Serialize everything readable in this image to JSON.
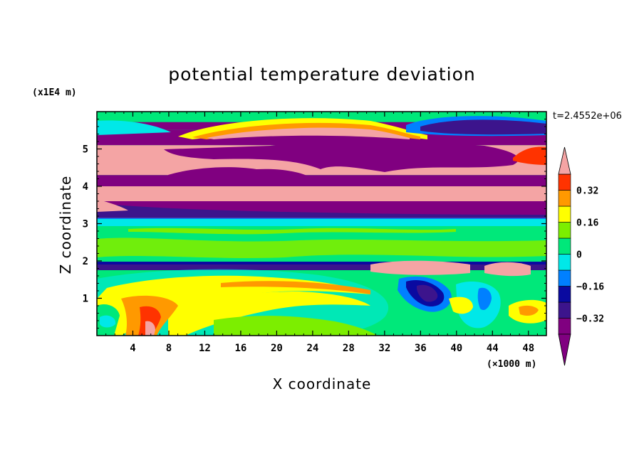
{
  "chart_data": {
    "type": "heatmap",
    "title": "potential temperature deviation",
    "xlabel": "X coordinate",
    "ylabel": "Z coordinate",
    "x_unit": "(×1000 m)",
    "y_unit": "(x1E4 m)",
    "time_label": "t=2.4552e+06",
    "xlim": [
      0,
      50
    ],
    "ylim": [
      0,
      6
    ],
    "x_ticks": [
      4,
      8,
      12,
      16,
      20,
      24,
      28,
      32,
      36,
      40,
      44,
      48
    ],
    "y_ticks": [
      1,
      2,
      3,
      4,
      5
    ],
    "colorbar": {
      "levels": [
        -0.4,
        -0.32,
        -0.24,
        -0.16,
        -0.08,
        0,
        0.08,
        0.16,
        0.24,
        0.32,
        0.4
      ],
      "labels": [
        "0.32",
        "0.16",
        "0",
        "−0.16",
        "−0.32"
      ],
      "label_values": [
        0.32,
        0.16,
        0,
        -0.16,
        -0.32
      ],
      "colors_low_to_high": [
        "#800080",
        "#3c148c",
        "#0a0aa0",
        "#0080ff",
        "#00e8e8",
        "#00e87a",
        "#7cee00",
        "#ffff00",
        "#ff9900",
        "#ff3300",
        "#f4a4a4"
      ],
      "extend": "both"
    },
    "bands": [
      {
        "z": [
          5.72,
          6.0
        ],
        "value": 0.0
      },
      {
        "z": [
          5.52,
          5.72
        ],
        "value": -0.45
      },
      {
        "z": [
          5.1,
          5.52
        ],
        "value": -0.45
      },
      {
        "z": [
          4.3,
          5.1
        ],
        "value": 0.45
      },
      {
        "z": [
          4.0,
          4.3
        ],
        "value": -0.45
      },
      {
        "z": [
          3.6,
          4.0
        ],
        "value": 0.45
      },
      {
        "z": [
          3.15,
          3.6
        ],
        "value": -0.45
      },
      {
        "z": [
          3.05,
          3.15
        ],
        "value": -0.12
      },
      {
        "z": [
          2.0,
          3.05
        ],
        "value": 0.03
      },
      {
        "z": [
          1.82,
          1.95
        ],
        "value": -0.45
      },
      {
        "z": [
          0.0,
          1.8
        ],
        "value": 0.05
      }
    ]
  }
}
